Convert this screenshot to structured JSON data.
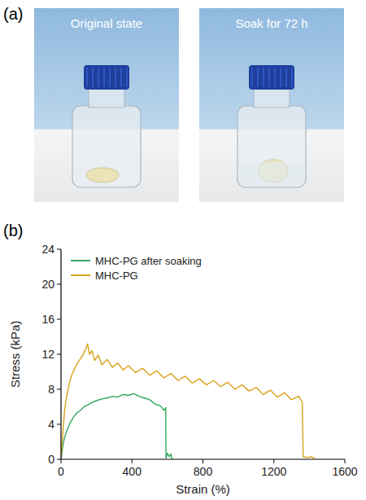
{
  "panel_a": {
    "label": "(a)",
    "photos": [
      {
        "caption": "Original state"
      },
      {
        "caption": "Soak for 72 h"
      }
    ]
  },
  "panel_b": {
    "label": "(b)"
  },
  "chart_data": {
    "type": "line",
    "x_label": "Strain (%)",
    "y_label": "Stress (kPa)",
    "xlim": [
      0,
      1600
    ],
    "xticks": [
      0,
      400,
      800,
      1200,
      1600
    ],
    "ylim": [
      0,
      24
    ],
    "yticks": [
      0,
      4,
      8,
      12,
      16,
      20,
      24
    ],
    "grid": false,
    "legend": "top-left",
    "series": [
      {
        "name": "MHC-PG after soaking",
        "color": "#2fa85c",
        "x": [
          0,
          10,
          20,
          35,
          50,
          70,
          90,
          110,
          130,
          150,
          175,
          200,
          230,
          260,
          290,
          320,
          350,
          380,
          410,
          440,
          470,
          500,
          530,
          560,
          580,
          590,
          592,
          600,
          610,
          620,
          625
        ],
        "values": [
          0,
          1.5,
          2.5,
          3.4,
          4.1,
          4.8,
          5.3,
          5.6,
          6,
          6.2,
          6.5,
          6.7,
          6.9,
          7,
          7.2,
          7.1,
          7.4,
          7.3,
          7.5,
          7.2,
          7,
          6.8,
          6.3,
          6.1,
          5.6,
          5.9,
          0.1,
          0.7,
          0.3,
          0.6,
          0
        ]
      },
      {
        "name": "MHC-PG",
        "color": "#d9a21b",
        "x": [
          0,
          10,
          20,
          30,
          45,
          60,
          80,
          100,
          120,
          140,
          150,
          160,
          175,
          190,
          210,
          230,
          260,
          290,
          320,
          350,
          380,
          420,
          460,
          500,
          540,
          580,
          620,
          660,
          700,
          740,
          780,
          820,
          860,
          900,
          940,
          980,
          1020,
          1060,
          1100,
          1140,
          1180,
          1220,
          1260,
          1300,
          1340,
          1360,
          1365,
          1390,
          1410,
          1430
        ],
        "values": [
          0,
          3,
          5.5,
          7,
          8.5,
          9.6,
          10.5,
          11.2,
          11.8,
          12.6,
          13.2,
          12,
          12.4,
          11.3,
          11.9,
          10.8,
          11.4,
          10.5,
          11,
          10.2,
          10.7,
          9.9,
          10.4,
          9.6,
          10.1,
          9.3,
          9.8,
          9,
          9.5,
          8.7,
          9.2,
          8.5,
          9,
          8.3,
          8.8,
          8,
          8.5,
          7.8,
          8.2,
          7.4,
          7.9,
          7.1,
          7.6,
          6.8,
          7.2,
          6.5,
          0.3,
          0.2,
          0.3,
          0.1
        ]
      }
    ]
  }
}
